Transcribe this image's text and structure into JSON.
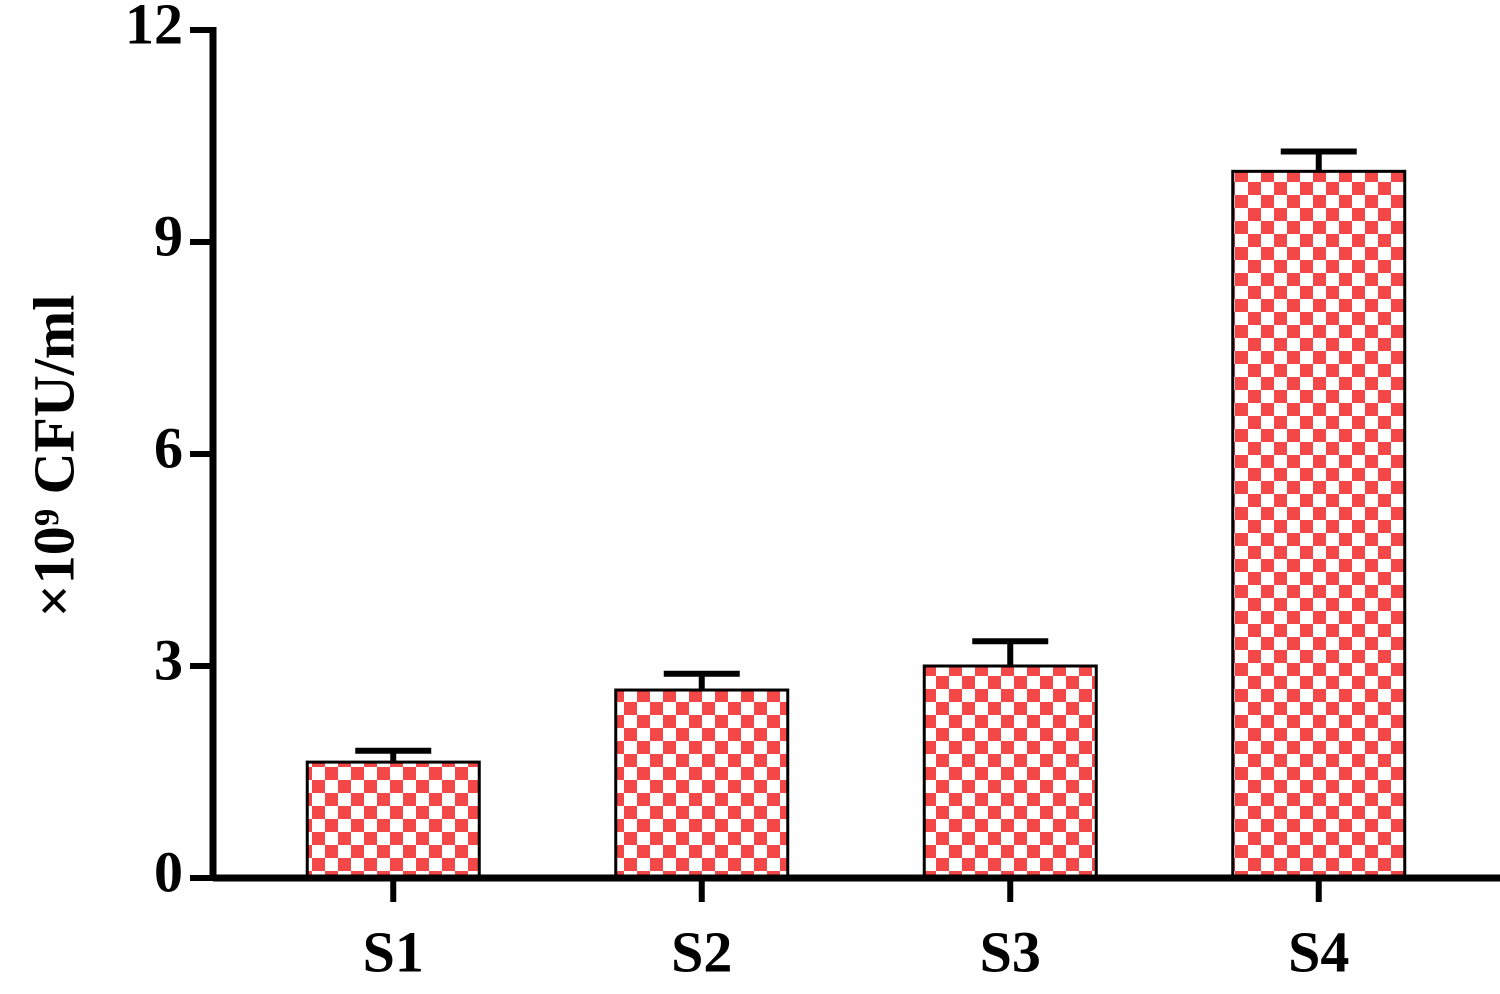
{
  "chart_data": {
    "type": "bar",
    "y_label": "×10⁹ CFU/ml",
    "categories": [
      "S1",
      "S2",
      "S3",
      "S4"
    ],
    "values": [
      1.64,
      2.66,
      3.0,
      10.0
    ],
    "errors": [
      0.16,
      0.23,
      0.35,
      0.28
    ],
    "color": "#f44848",
    "pattern": "checkerboard",
    "ylim": [
      0,
      12
    ],
    "yticks": [
      0,
      3,
      6,
      9,
      12
    ],
    "grid": false
  }
}
